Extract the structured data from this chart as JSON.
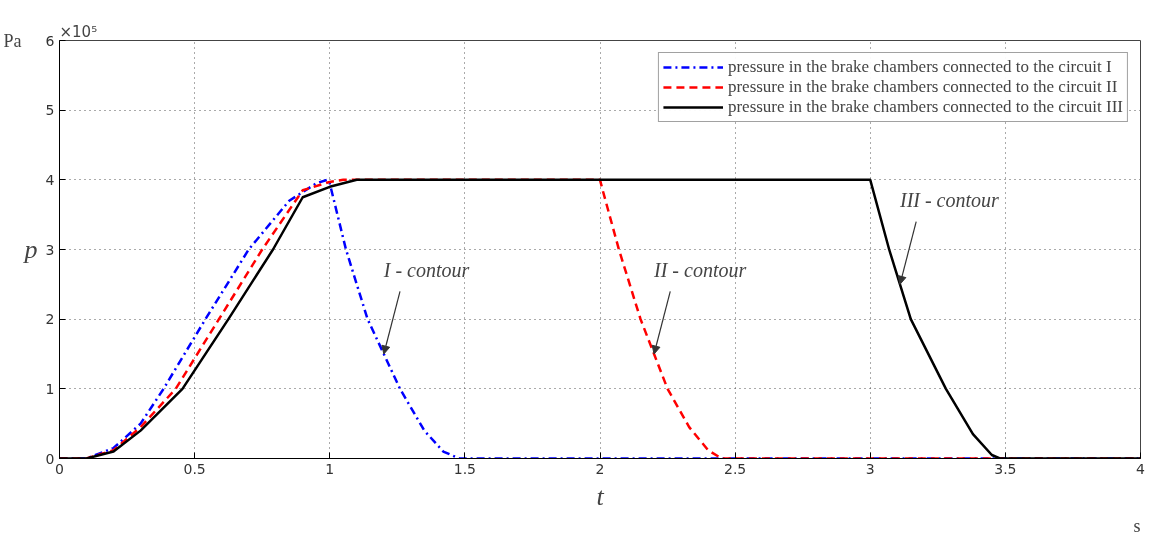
{
  "chart_data": {
    "type": "line",
    "xlabel": "t",
    "ylabel": "p",
    "xlim": [
      0,
      4
    ],
    "xticks": [
      0,
      0.5,
      1,
      1.5,
      2,
      2.5,
      3,
      3.5,
      4
    ],
    "ylim": [
      0,
      6
    ],
    "yticks": [
      0,
      1,
      2,
      3,
      4,
      5,
      6
    ],
    "grid": true,
    "legend": "top right",
    "marker": "none",
    "annotations": [
      "×10⁵",
      "Pa",
      "s",
      {
        "text": "I -  contour",
        "x": 1.2,
        "y": 1.5
      },
      {
        "text": "II -  contour",
        "x": 2.2,
        "y": 1.5
      },
      {
        "text": "III -  contour",
        "x": 3.11,
        "y": 2.5
      }
    ],
    "series": [
      {
        "name": "pressure in the brake chambers connected to the circuit I",
        "color": "#0000ff",
        "line_style": "dashdot",
        "x": [
          0,
          0.1,
          0.2,
          0.3,
          0.385,
          0.54,
          0.7,
          0.85,
          0.95,
          0.99,
          1.0,
          1.06,
          1.14,
          1.2,
          1.26,
          1.35,
          1.42,
          1.48,
          1.5,
          4.0
        ],
        "values": [
          0,
          0,
          0.15,
          0.5,
          1,
          2,
          3,
          3.7,
          3.95,
          4,
          3.95,
          3,
          2,
          1.5,
          1,
          0.4,
          0.1,
          0,
          0,
          0
        ]
      },
      {
        "name": "pressure in the brake chambers connected to the circuit II",
        "color": "#ff0000",
        "line_style": "dashed",
        "x": [
          0,
          0.1,
          0.2,
          0.3,
          0.43,
          0.59,
          0.75,
          0.9,
          1.0,
          1.05,
          2.0,
          2.01,
          2.07,
          2.15,
          2.2,
          2.25,
          2.33,
          2.4,
          2.45,
          4.0
        ],
        "values": [
          0,
          0,
          0.12,
          0.45,
          1,
          2,
          3,
          3.85,
          3.97,
          4,
          4,
          3.85,
          3,
          2,
          1.5,
          1,
          0.45,
          0.12,
          0,
          0
        ]
      },
      {
        "name": "pressure in the brake chambers connected to the circuit III",
        "color": "#000000",
        "line_style": "solid",
        "x": [
          0,
          0.1,
          0.2,
          0.3,
          0.455,
          0.625,
          0.79,
          0.9,
          1.0,
          1.1,
          3.0,
          3.07,
          3.11,
          3.15,
          3.28,
          3.38,
          3.45,
          3.48,
          4.0
        ],
        "values": [
          0,
          0,
          0.1,
          0.4,
          1,
          2,
          3,
          3.75,
          3.9,
          4,
          4,
          3,
          2.5,
          2,
          1,
          0.35,
          0.05,
          0,
          0
        ]
      }
    ]
  }
}
